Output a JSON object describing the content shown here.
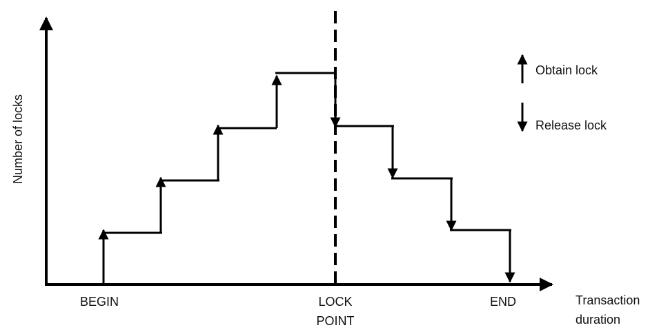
{
  "diagram": {
    "y_axis_label": "Number of locks",
    "x_axis_label_line1": "Transaction",
    "x_axis_label_line2": "duration",
    "begin_label": "BEGIN",
    "lock_point_label_line1": "LOCK",
    "lock_point_label_line2": "POINT",
    "end_label": "END",
    "phases": {
      "growing": {
        "locks_after_each_step": [
          1,
          2,
          3,
          4
        ]
      },
      "shrinking": {
        "locks_after_each_step": [
          3,
          2,
          1,
          0
        ]
      }
    },
    "legend": {
      "obtain_label": "Obtain lock",
      "release_label": "Release lock"
    },
    "colors": {
      "ink": "#000000",
      "text": "#111111",
      "background": "#ffffff"
    }
  }
}
